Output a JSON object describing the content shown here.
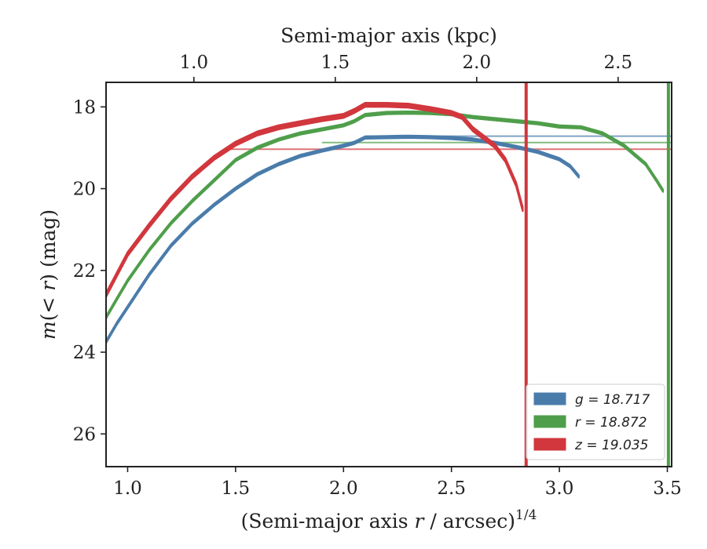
{
  "chart_data": {
    "type": "line",
    "xlabel": "(Semi-major axis r / arcsec)^{1/4}",
    "xlabel_parts": {
      "pre": "(Semi-major axis ",
      "var": "r",
      "post": " / arcsec)",
      "sup": "1/4"
    },
    "ylabel": "m(< r) (mag)",
    "ylabel_parts": {
      "var": "m",
      "mid": "(< ",
      "var2": "r",
      "post": ") (mag)"
    },
    "top_xlabel": "Semi-major axis (kpc)",
    "xlim": [
      0.9,
      3.52
    ],
    "ylim": [
      26.8,
      17.4
    ],
    "y_inverted": true,
    "x_ticks": [
      1.0,
      1.5,
      2.0,
      2.5,
      3.0,
      3.5
    ],
    "x_tick_labels": [
      "1.0",
      "1.5",
      "2.0",
      "2.5",
      "3.0",
      "3.5"
    ],
    "y_ticks": [
      18,
      20,
      22,
      24,
      26
    ],
    "y_tick_labels": [
      "18",
      "20",
      "22",
      "24",
      "26"
    ],
    "top_ticks_at_bottom_x": [
      1.307,
      1.962,
      2.617,
      3.272
    ],
    "top_tick_labels": [
      "1.0",
      "1.5",
      "2.0",
      "2.5"
    ],
    "grid": false,
    "legend_position": "lower-right",
    "legend": [
      {
        "label": "g = 18.717",
        "color": "#4a7cab"
      },
      {
        "label": "r = 18.872",
        "color": "#4f9e4b"
      },
      {
        "label": "z = 19.035",
        "color": "#d1373d"
      }
    ],
    "vertical_lines": [
      {
        "x": 2.846,
        "color": "#d1373d"
      },
      {
        "x": 3.505,
        "color": "#4f9e4b"
      }
    ],
    "series": [
      {
        "name": "g = 18.717",
        "color": "#4a7cab",
        "band_width": 0.06,
        "x": [
          0.9,
          0.95,
          1.0,
          1.1,
          1.2,
          1.3,
          1.4,
          1.5,
          1.6,
          1.7,
          1.8,
          1.9,
          2.0,
          2.05,
          2.1,
          2.2,
          2.3,
          2.4,
          2.5,
          2.6,
          2.7,
          2.8,
          2.9,
          3.0,
          3.05,
          3.09
        ],
        "y": [
          23.75,
          23.3,
          22.9,
          22.1,
          21.4,
          20.85,
          20.4,
          20.0,
          19.65,
          19.4,
          19.2,
          19.07,
          18.95,
          18.88,
          18.75,
          18.74,
          18.73,
          18.74,
          18.76,
          18.8,
          18.88,
          18.98,
          19.1,
          19.28,
          19.45,
          19.7
        ],
        "total": 18.717,
        "total_from_x": 2.1
      },
      {
        "name": "r = 18.872",
        "color": "#4f9e4b",
        "band_width": 0.06,
        "x": [
          0.9,
          0.95,
          1.0,
          1.1,
          1.2,
          1.3,
          1.4,
          1.5,
          1.6,
          1.7,
          1.8,
          1.9,
          2.0,
          2.05,
          2.1,
          2.2,
          2.3,
          2.4,
          2.5,
          2.6,
          2.7,
          2.8,
          2.9,
          3.0,
          3.1,
          3.2,
          3.3,
          3.4,
          3.45,
          3.48
        ],
        "y": [
          23.15,
          22.7,
          22.25,
          21.5,
          20.85,
          20.3,
          19.8,
          19.3,
          19.0,
          18.8,
          18.65,
          18.55,
          18.45,
          18.35,
          18.2,
          18.15,
          18.14,
          18.15,
          18.18,
          18.25,
          18.3,
          18.35,
          18.4,
          18.48,
          18.5,
          18.65,
          18.95,
          19.4,
          19.8,
          20.05
        ],
        "total": 18.872,
        "total_from_x": 1.9
      },
      {
        "name": "z = 19.035",
        "color": "#d1373d",
        "band_width": 0.1,
        "x": [
          0.9,
          0.95,
          1.0,
          1.1,
          1.2,
          1.3,
          1.4,
          1.5,
          1.6,
          1.7,
          1.8,
          1.9,
          2.0,
          2.05,
          2.1,
          2.2,
          2.3,
          2.4,
          2.5,
          2.55,
          2.6,
          2.65,
          2.7,
          2.75,
          2.8,
          2.83
        ],
        "y": [
          22.6,
          22.1,
          21.6,
          20.9,
          20.25,
          19.7,
          19.25,
          18.9,
          18.65,
          18.5,
          18.4,
          18.3,
          18.22,
          18.1,
          17.95,
          17.95,
          17.97,
          18.05,
          18.15,
          18.25,
          18.55,
          18.75,
          18.95,
          19.3,
          19.9,
          20.5
        ],
        "total": 19.035,
        "total_from_x": 1.45
      }
    ]
  }
}
